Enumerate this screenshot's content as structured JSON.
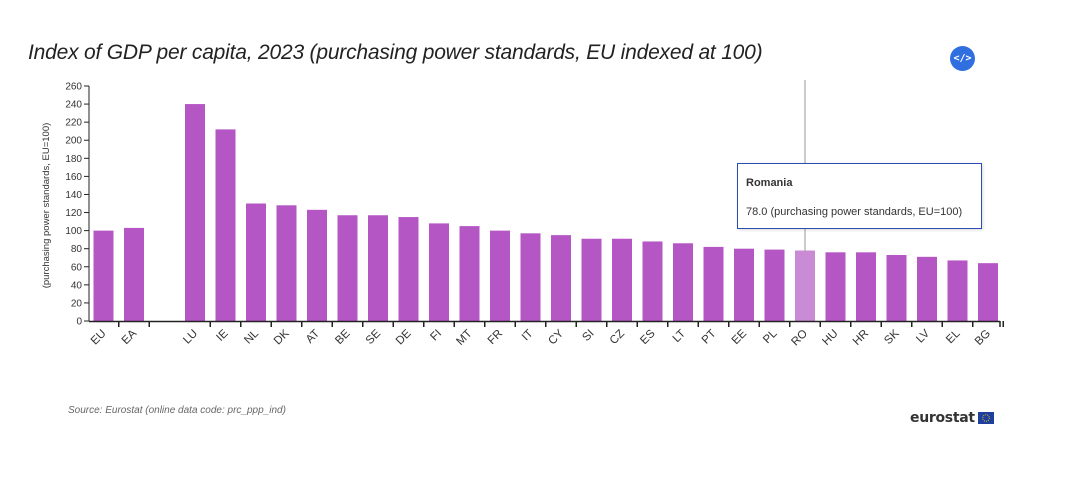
{
  "chart_data": {
    "type": "bar",
    "title": "Index of GDP per capita, 2023 (purchasing power standards, EU indexed at 100)",
    "ylabel": "(purchasing power standards, EU=100)",
    "xlabel": "",
    "ylim": [
      0,
      260
    ],
    "yticks": [
      "0",
      "20",
      "40",
      "60",
      "80",
      "100",
      "120",
      "140",
      "160",
      "180",
      "200",
      "220",
      "240",
      "260"
    ],
    "categories": [
      "EU",
      "EA",
      "",
      "LU",
      "IE",
      "NL",
      "DK",
      "AT",
      "BE",
      "SE",
      "DE",
      "FI",
      "MT",
      "FR",
      "IT",
      "CY",
      "SI",
      "CZ",
      "ES",
      "LT",
      "PT",
      "EE",
      "PL",
      "RO",
      "HU",
      "HR",
      "SK",
      "LV",
      "EL",
      "BG"
    ],
    "values": [
      100,
      103,
      null,
      240,
      212,
      130,
      128,
      123,
      117,
      117,
      115,
      108,
      105,
      100,
      97,
      95,
      91,
      91,
      88,
      86,
      82,
      80,
      79,
      78,
      76,
      76,
      73,
      71,
      67,
      64
    ],
    "highlighted": "RO",
    "colors": {
      "bar": "#b456c4",
      "bar_highlight": "#c98bd3",
      "axis": "#222222",
      "accent": "#2f6fe0"
    },
    "grid": false,
    "legend": "none"
  },
  "tooltip": {
    "title": "Romania",
    "value": "78.0 (purchasing power standards, EU=100)"
  },
  "source": "Source: Eurostat (online data code: prc_ppp_ind)",
  "logo": {
    "text": "eurostat",
    "icon": "eu-flag-icon"
  },
  "embed_button": {
    "label": "</>",
    "icon": "code-embed-icon"
  }
}
